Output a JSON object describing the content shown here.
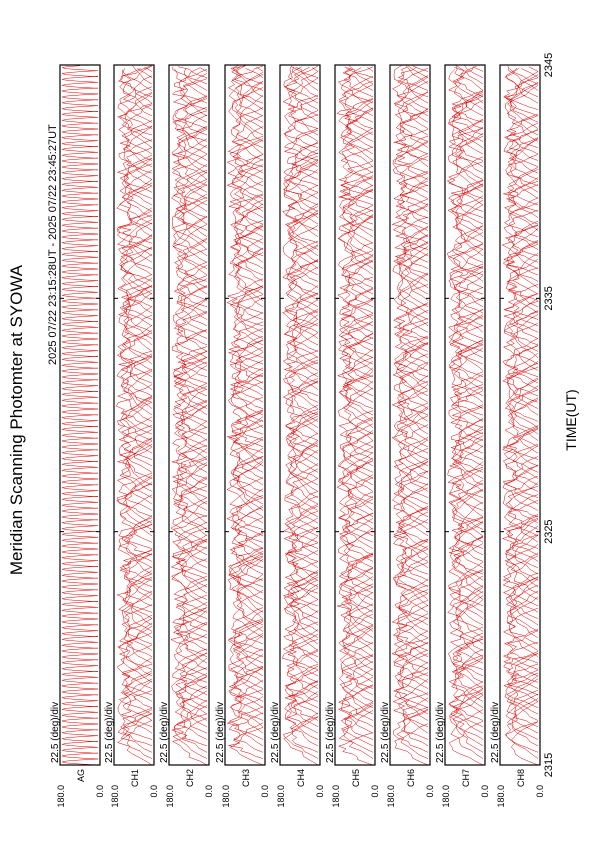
{
  "title": "Meridian Scanning Photomter at SYOWA",
  "subtitle": "2025 07/22 23:15:28UT - 2025 07/22 23:45:27UT",
  "x_axis": {
    "label": "TIME(UT)",
    "xlim": [
      2315,
      2345
    ],
    "ticks": [
      2315,
      2325,
      2335,
      2345
    ]
  },
  "panels": [
    {
      "channel": "AG",
      "scale": "22.5 (deg)/div",
      "top": "180.0",
      "bottom": "0.0"
    },
    {
      "channel": "CH1",
      "scale": "22.5 (deg)/div",
      "top": "180.0",
      "bottom": "0.0"
    },
    {
      "channel": "CH2",
      "scale": "22.5 (deg)/div",
      "top": "180.0",
      "bottom": "0.0"
    },
    {
      "channel": "CH3",
      "scale": "22.5 (deg)/div",
      "top": "180.0",
      "bottom": "0.0"
    },
    {
      "channel": "CH4",
      "scale": "22.5 (deg)/div",
      "top": "180.0",
      "bottom": "0.0"
    },
    {
      "channel": "CH5",
      "scale": "22.5 (deg)/div",
      "top": "180.0",
      "bottom": "0.0"
    },
    {
      "channel": "CH6",
      "scale": "22.5 (deg)/div",
      "top": "180.0",
      "bottom": "0.0"
    },
    {
      "channel": "CH7",
      "scale": "22.5 (deg)/div",
      "top": "180.0",
      "bottom": "0.0"
    },
    {
      "channel": "CH8",
      "scale": "22.5 (deg)/div",
      "top": "180.0",
      "bottom": "0.0"
    }
  ]
}
